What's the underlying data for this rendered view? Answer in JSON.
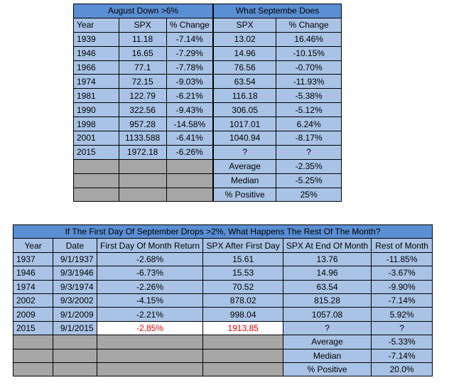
{
  "table1": {
    "group_left": "August Down >6%",
    "group_right": "What Septembe Does",
    "columns": [
      "Year",
      "SPX",
      "% Change",
      "SPX",
      "% Change"
    ],
    "rows": [
      [
        "1939",
        "11.18",
        "-7.14%",
        "13.02",
        "16.46%"
      ],
      [
        "1946",
        "16.65",
        "-7.29%",
        "14.96",
        "-10.15%"
      ],
      [
        "1966",
        "77.1",
        "-7.78%",
        "76.56",
        "-0.70%"
      ],
      [
        "1974",
        "72.15",
        "-9.03%",
        "63.54",
        "-11.93%"
      ],
      [
        "1981",
        "122.79",
        "-6.21%",
        "116.18",
        "-5.38%"
      ],
      [
        "1990",
        "322.56",
        "-9.43%",
        "306.05",
        "-5.12%"
      ],
      [
        "1998",
        "957.28",
        "-14.58%",
        "1017.01",
        "6.24%"
      ],
      [
        "2001",
        "1133.588",
        "-6.41%",
        "1040.94",
        "-8.17%"
      ],
      [
        "2015",
        "1972.18",
        "-6.26%",
        "?",
        "?"
      ]
    ],
    "summary": [
      {
        "label": "Average",
        "value": "-2.35%"
      },
      {
        "label": "Median",
        "value": "-5.25%"
      },
      {
        "label": "% Positive",
        "value": "25%"
      }
    ]
  },
  "table2": {
    "title": "If The First Day Of September Drops >2%, What Happens The Rest Of The Month?",
    "columns": [
      "Year",
      "Date",
      "First Day Of Month Return",
      "SPX After First Day",
      "SPX At End Of Month",
      "Rest of Month"
    ],
    "rows": [
      [
        "1937",
        "9/1/1937",
        "-2.68%",
        "15.61",
        "13.76",
        "-11.85%"
      ],
      [
        "1946",
        "9/3/1946",
        "-6.73%",
        "15.53",
        "14.96",
        "-3.67%"
      ],
      [
        "1974",
        "9/3/1974",
        "-2.26%",
        "70.52",
        "63.54",
        "-9.90%"
      ],
      [
        "2002",
        "9/3/2002",
        "-4.15%",
        "878.02",
        "815.28",
        "-7.14%"
      ],
      [
        "2009",
        "9/1/2009",
        "-2.21%",
        "998.04",
        "1057.08",
        "5.92%"
      ]
    ],
    "last_row": {
      "year": "2015",
      "date": "9/1/2015",
      "return": "-2,85%",
      "spx_after": "1913,85",
      "spx_end": "?",
      "rest": "?"
    },
    "summary": [
      {
        "label": "Average",
        "value": "-5.33%"
      },
      {
        "label": "Median",
        "value": "-7.14%"
      },
      {
        "label": "% Positive",
        "value": "20.0%"
      }
    ]
  }
}
